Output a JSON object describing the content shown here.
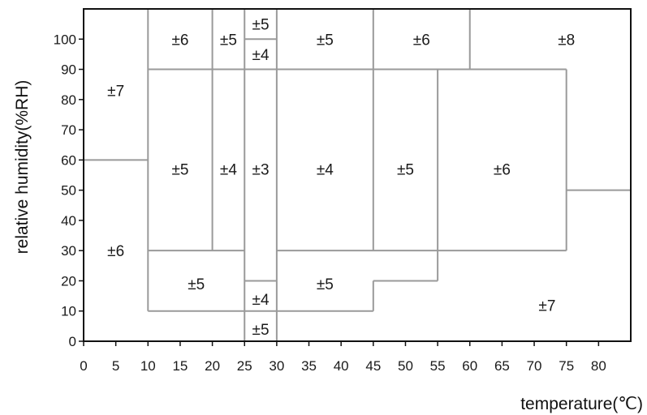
{
  "chart_data": {
    "type": "table",
    "xlabel": "temperature(℃)",
    "ylabel": "relative humidity(%RH)",
    "xlim": [
      0,
      85
    ],
    "ylim": [
      0,
      110
    ],
    "x_ticks": [
      0,
      5,
      10,
      15,
      20,
      25,
      30,
      35,
      40,
      45,
      50,
      55,
      60,
      65,
      70,
      75,
      80
    ],
    "y_ticks": [
      0,
      10,
      20,
      30,
      40,
      50,
      60,
      70,
      80,
      90,
      100
    ],
    "colors": {
      "border": "#111111",
      "region_line": "#9a9a9a",
      "text": "#1a1a1a"
    },
    "boundaries": [
      [
        [
          0,
          60
        ],
        [
          10,
          60
        ]
      ],
      [
        [
          10,
          110
        ],
        [
          10,
          10
        ]
      ],
      [
        [
          10,
          90
        ],
        [
          75,
          90
        ]
      ],
      [
        [
          20,
          110
        ],
        [
          20,
          30
        ]
      ],
      [
        [
          25,
          110
        ],
        [
          25,
          0
        ]
      ],
      [
        [
          30,
          110
        ],
        [
          30,
          0
        ]
      ],
      [
        [
          25,
          100
        ],
        [
          30,
          100
        ]
      ],
      [
        [
          45,
          110
        ],
        [
          45,
          30
        ]
      ],
      [
        [
          60,
          110
        ],
        [
          60,
          90
        ]
      ],
      [
        [
          55,
          90
        ],
        [
          55,
          20
        ]
      ],
      [
        [
          75,
          90
        ],
        [
          75,
          30
        ]
      ],
      [
        [
          75,
          50
        ],
        [
          85,
          50
        ]
      ],
      [
        [
          10,
          30
        ],
        [
          25,
          30
        ]
      ],
      [
        [
          30,
          30
        ],
        [
          75,
          30
        ]
      ],
      [
        [
          25,
          20
        ],
        [
          30,
          20
        ]
      ],
      [
        [
          10,
          10
        ],
        [
          45,
          10
        ]
      ],
      [
        [
          45,
          20
        ],
        [
          55,
          20
        ]
      ],
      [
        [
          45,
          20
        ],
        [
          45,
          10
        ]
      ]
    ],
    "zones": [
      {
        "label": "±7",
        "x": 5,
        "y": 83
      },
      {
        "label": "±6",
        "x": 5,
        "y": 30
      },
      {
        "label": "±6",
        "x": 15,
        "y": 100
      },
      {
        "label": "±5",
        "x": 22.5,
        "y": 100
      },
      {
        "label": "±5",
        "x": 27.5,
        "y": 105
      },
      {
        "label": "±4",
        "x": 27.5,
        "y": 95
      },
      {
        "label": "±5",
        "x": 37.5,
        "y": 100
      },
      {
        "label": "±6",
        "x": 52.5,
        "y": 100
      },
      {
        "label": "±8",
        "x": 75,
        "y": 100
      },
      {
        "label": "±5",
        "x": 15,
        "y": 57
      },
      {
        "label": "±4",
        "x": 22.5,
        "y": 57
      },
      {
        "label": "±3",
        "x": 27.5,
        "y": 57
      },
      {
        "label": "±4",
        "x": 37.5,
        "y": 57
      },
      {
        "label": "±5",
        "x": 50,
        "y": 57
      },
      {
        "label": "±6",
        "x": 65,
        "y": 57
      },
      {
        "label": "±5",
        "x": 17.5,
        "y": 19
      },
      {
        "label": "±4",
        "x": 27.5,
        "y": 14
      },
      {
        "label": "±5",
        "x": 27.5,
        "y": 4
      },
      {
        "label": "±5",
        "x": 37.5,
        "y": 19
      },
      {
        "label": "±7",
        "x": 72,
        "y": 12
      }
    ]
  }
}
